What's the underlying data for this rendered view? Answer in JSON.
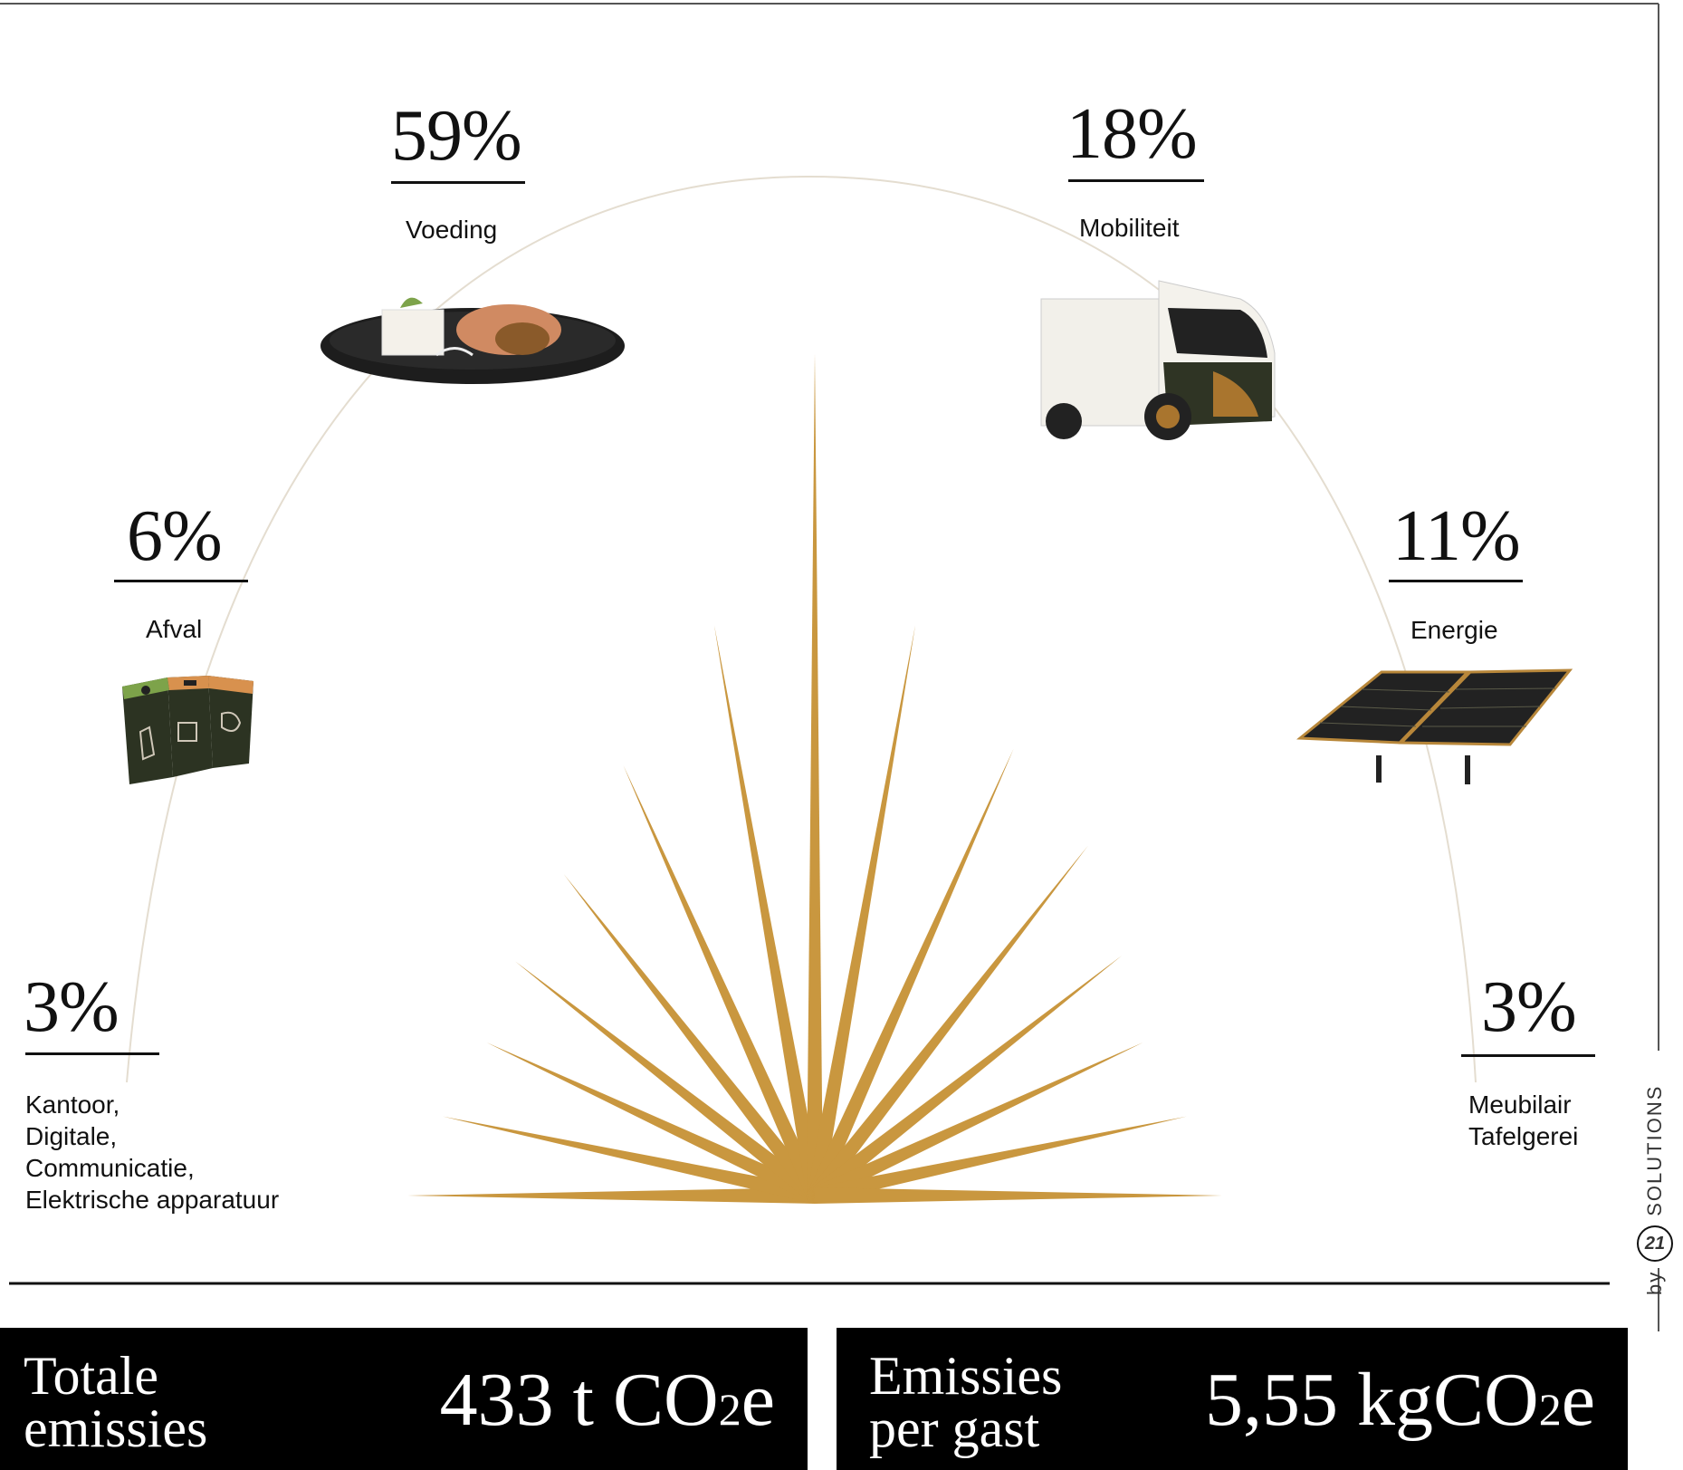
{
  "chart_data": {
    "type": "pie",
    "title": "",
    "categories": [
      "Kantoor, Digitale, Communicatie, Elektrische apparatuur",
      "Afval",
      "Voeding",
      "Mobiliteit",
      "Energie",
      "Meubilair Tafelgerei"
    ],
    "values": [
      3,
      6,
      59,
      18,
      11,
      3
    ],
    "value_labels": [
      "3%",
      "6%",
      "59%",
      "18%",
      "11%",
      "3%"
    ],
    "unit": "%",
    "segments": [
      {
        "id": "kantoor",
        "percent_label": "3%",
        "label_lines": [
          "Kantoor,",
          "Digitale,",
          "Communicatie,",
          "Elektrische apparatuur"
        ],
        "icon": "office-icon"
      },
      {
        "id": "afval",
        "percent_label": "6%",
        "label_lines": [
          "Afval"
        ],
        "icon": "waste-bins-icon"
      },
      {
        "id": "voeding",
        "percent_label": "59%",
        "label_lines": [
          "Voeding"
        ],
        "icon": "food-plate-icon"
      },
      {
        "id": "mobiliteit",
        "percent_label": "18%",
        "label_lines": [
          "Mobiliteit"
        ],
        "icon": "van-icon"
      },
      {
        "id": "energie",
        "percent_label": "11%",
        "label_lines": [
          "Energie"
        ],
        "icon": "solar-panel-icon"
      },
      {
        "id": "meubilair",
        "percent_label": "3%",
        "label_lines": [
          "Meubilair",
          "Tafelgerei"
        ],
        "icon": "furniture-icon"
      }
    ],
    "colors": {
      "ray": "#c9973f",
      "arc": "#e4ddd0",
      "text": "#111111",
      "panel": "#000000",
      "van_accent": "#a9752e",
      "bins": "#2c3322"
    }
  },
  "summary": {
    "total": {
      "title": "Totale\nemissies",
      "value_main": "433 t CO",
      "value_sub": "2",
      "value_tail": "e"
    },
    "per_guest": {
      "title": "Emissies\nper gast",
      "value_main": "5,55 kgCO",
      "value_sub": "2",
      "value_tail": "e"
    }
  },
  "brand": {
    "prefix": "by",
    "logo": "21",
    "name": "SOLUTIONS"
  }
}
